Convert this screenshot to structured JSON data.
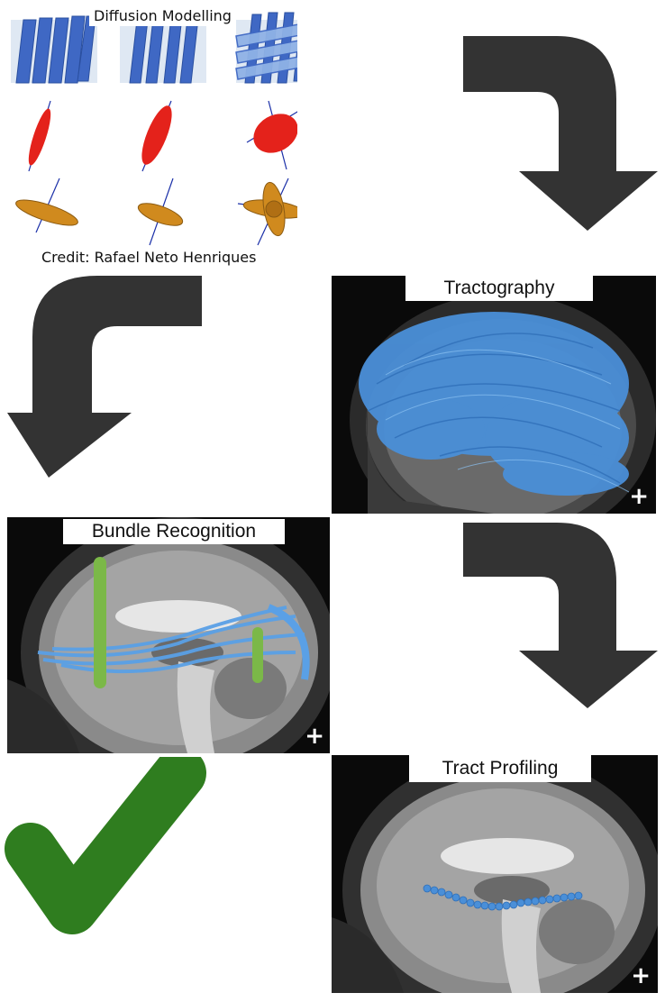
{
  "diffusion": {
    "title": "Diffusion Modelling",
    "credit": "Credit: Rafael Neto Henriques"
  },
  "panels": {
    "tractography": {
      "label": "Tractography",
      "corner_icon": "+"
    },
    "bundle_recognition": {
      "label": "Bundle Recognition",
      "corner_icon": "+"
    },
    "tract_profiling": {
      "label": "Tract Profiling",
      "corner_icon": "+"
    }
  },
  "icons": {
    "arrows": [
      "arrow-down-right-icon",
      "arrow-down-left-icon",
      "arrow-down-right-icon"
    ],
    "done": "checkmark-icon"
  },
  "colors": {
    "arrow": "#333333",
    "fiber_blue": "#4a8fd8",
    "bundle_green": "#7bb848",
    "check_green": "#2f7d1f",
    "ellipsoid_red": "#e4221b",
    "odf_orange": "#d08a1e"
  }
}
